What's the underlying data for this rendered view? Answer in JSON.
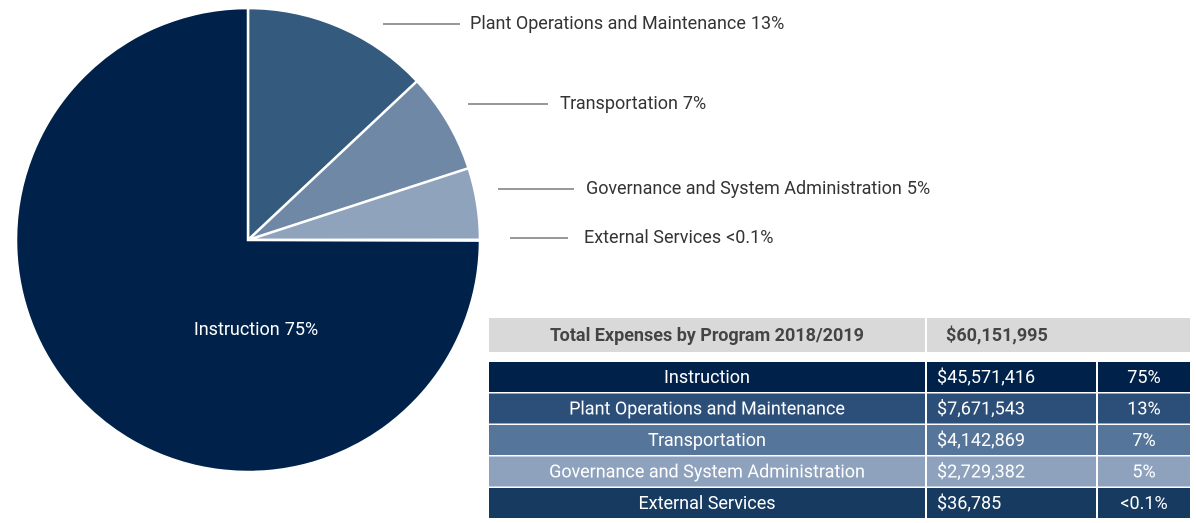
{
  "chart_data": {
    "type": "pie",
    "categories": [
      "Plant Operations and Maintenance",
      "Transportation",
      "Governance and System Administration",
      "External Services",
      "Instruction"
    ],
    "values": [
      13,
      7,
      5,
      0.06,
      75
    ],
    "value_labels": [
      "13%",
      "7%",
      "5%",
      "<0.1%",
      "75%"
    ],
    "colors": [
      "#345a7e",
      "#6e88a6",
      "#8fa3bd",
      "#2b4f73",
      "#00224a"
    ]
  },
  "table": {
    "title": "Total Expenses by Program 2018/2019",
    "total": "$60,151,995",
    "rows": [
      [
        "Instruction",
        "$45,571,416",
        "75%"
      ],
      [
        "Plant Operations and Maintenance",
        "$7,671,543",
        "13%"
      ],
      [
        "Transportation",
        "$4,142,869",
        "7%"
      ],
      [
        "Governance and System Administration",
        "$2,729,382",
        "5%"
      ],
      [
        "External Services",
        "$36,785",
        "<0.1%"
      ]
    ]
  }
}
